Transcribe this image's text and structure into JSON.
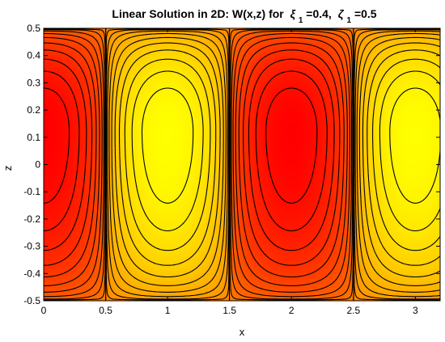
{
  "chart_data": {
    "type": "heatmap",
    "subtype": "filled-contour",
    "title": {
      "prefix": "Linear Solution in 2D: W(x,z) for ",
      "param1_symbol": "ξ",
      "param1_sub": "1",
      "param1_value": "=0.4,",
      "param2_symbol": "ζ",
      "param2_sub": "1",
      "param2_value": "=0.5"
    },
    "xlabel": "x",
    "ylabel": "z",
    "xlim": [
      0,
      3.2
    ],
    "ylim": [
      -0.5,
      0.5
    ],
    "xticks": [
      0,
      0.5,
      1,
      1.5,
      2,
      2.5,
      3
    ],
    "xtick_labels": [
      "0",
      "0.5",
      "1",
      "1.5",
      "2",
      "2.5",
      "3"
    ],
    "yticks": [
      -0.5,
      -0.4,
      -0.3,
      -0.2,
      -0.1,
      0,
      0.1,
      0.2,
      0.3,
      0.4,
      0.5
    ],
    "ytick_labels": [
      "-0.5",
      "-0.4",
      "-0.3",
      "-0.2",
      "-0.1",
      "0",
      "0.1",
      "0.2",
      "0.3",
      "0.4",
      "0.5"
    ],
    "field": {
      "formula": "cos(pi*x) * f(z)",
      "period_x": 2,
      "extrema": [
        {
          "x": 0,
          "z": 0.12,
          "sign": "max"
        },
        {
          "x": 1,
          "z": 0.12,
          "sign": "min"
        },
        {
          "x": 2,
          "z": 0.12,
          "sign": "max"
        },
        {
          "x": 3,
          "z": 0.12,
          "sign": "min"
        }
      ],
      "boundary_z": [
        -0.5,
        0.5
      ],
      "contour_levels": 10
    },
    "colormap": [
      "#ffff00",
      "#ff8000",
      "#ff0000"
    ],
    "grid": false
  }
}
